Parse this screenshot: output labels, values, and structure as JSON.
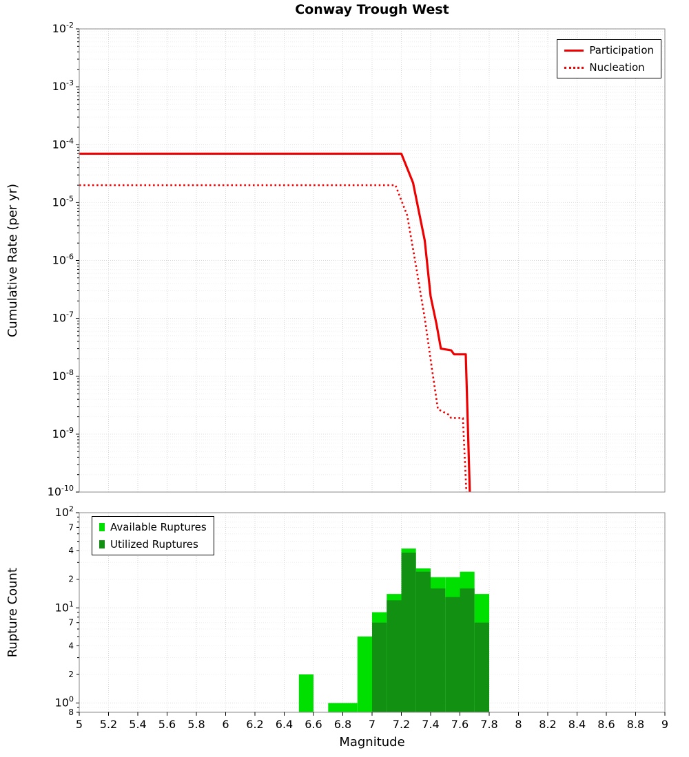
{
  "title": "Conway Trough West",
  "x_axis": {
    "label": "Magnitude",
    "min": 5,
    "max": 9,
    "tick_step": 0.2,
    "tick_labels": [
      "5",
      "5.2",
      "5.4",
      "5.6",
      "5.8",
      "6",
      "6.2",
      "6.4",
      "6.6",
      "6.8",
      "7",
      "7.2",
      "7.4",
      "7.6",
      "7.8",
      "8",
      "8.2",
      "8.4",
      "8.6",
      "8.8",
      "9"
    ]
  },
  "top_panel": {
    "ylabel": "Cumulative Rate (per yr)",
    "y_scale": "log",
    "y_tick_exponents": [
      -2,
      -3,
      -4,
      -5,
      -6,
      -7,
      -8,
      -9,
      -10
    ],
    "legend": [
      {
        "label": "Participation",
        "style": "solid",
        "color": "#ee0000"
      },
      {
        "label": "Nucleation",
        "style": "dotted",
        "color": "#ee0000"
      }
    ]
  },
  "bottom_panel": {
    "ylabel": "Rupture Count",
    "y_scale": "log",
    "major_tick_exponents": [
      2,
      1,
      0
    ],
    "labeled_minor_ticks": [
      [
        70,
        "7"
      ],
      [
        40,
        "4"
      ],
      [
        20,
        "2"
      ],
      [
        7,
        "7"
      ],
      [
        4,
        "4"
      ],
      [
        2,
        "2"
      ],
      [
        0.8,
        "8"
      ]
    ],
    "legend": [
      {
        "label": "Available Ruptures",
        "color": "#00e000"
      },
      {
        "label": "Utilized Ruptures",
        "color": "#129012"
      }
    ]
  },
  "chart_data": [
    {
      "type": "line",
      "title": "Conway Trough West",
      "xlabel": "Magnitude",
      "ylabel": "Cumulative Rate (per yr)",
      "xlim": [
        5,
        9
      ],
      "ylim": [
        1e-10,
        0.01
      ],
      "y_scale": "log",
      "grid": true,
      "legend_position": "top-right",
      "series": [
        {
          "name": "Participation",
          "color": "#ee0000",
          "style": "solid",
          "points": [
            [
              5.0,
              7e-05
            ],
            [
              7.2,
              7e-05
            ],
            [
              7.28,
              2.2e-05
            ],
            [
              7.36,
              2.2e-06
            ],
            [
              7.4,
              2.4e-07
            ],
            [
              7.44,
              8e-08
            ],
            [
              7.47,
              3e-08
            ],
            [
              7.54,
              2.8e-08
            ],
            [
              7.56,
              2.4e-08
            ],
            [
              7.64,
              2.4e-08
            ],
            [
              7.67,
              6e-11
            ]
          ]
        },
        {
          "name": "Nucleation",
          "color": "#ee0000",
          "style": "dotted",
          "points": [
            [
              5.0,
              2e-05
            ],
            [
              7.16,
              2e-05
            ],
            [
              7.24,
              6e-06
            ],
            [
              7.3,
              8e-07
            ],
            [
              7.36,
              1e-07
            ],
            [
              7.41,
              1.3e-08
            ],
            [
              7.45,
              2.7e-09
            ],
            [
              7.52,
              2.2e-09
            ],
            [
              7.54,
              1.9e-09
            ],
            [
              7.62,
              1.9e-09
            ],
            [
              7.65,
              5e-11
            ]
          ]
        }
      ]
    },
    {
      "type": "bar",
      "ylabel": "Rupture Count",
      "xlim": [
        5,
        9
      ],
      "ylim": [
        0.8,
        100
      ],
      "y_scale": "log",
      "grid": true,
      "legend_position": "top-left",
      "bin_width": 0.1,
      "categories": [
        6.55,
        6.75,
        6.85,
        6.95,
        7.05,
        7.15,
        7.25,
        7.35,
        7.45,
        7.55,
        7.65,
        7.75
      ],
      "series": [
        {
          "name": "Available Ruptures",
          "color": "#00e000",
          "values": [
            2,
            1,
            1,
            5,
            9,
            14,
            42,
            26,
            21,
            21,
            24,
            14
          ]
        },
        {
          "name": "Utilized Ruptures",
          "color": "#129012",
          "values": [
            0,
            0,
            0,
            0,
            7,
            12,
            38,
            24,
            16,
            13,
            16,
            7
          ]
        }
      ]
    }
  ]
}
